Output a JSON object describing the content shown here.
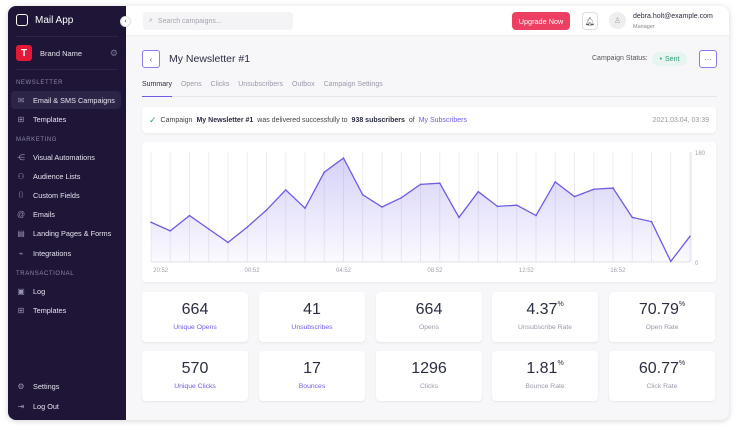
{
  "app": {
    "title": "Mail App"
  },
  "brand": {
    "name": "Brand Name",
    "logo_letter": "T"
  },
  "sidebar": {
    "sections": [
      "NEWSLETTER",
      "MARKETING",
      "TRANSACTIONAL"
    ],
    "items": [
      {
        "label": "Email & SMS Campaigns",
        "icon": "mail-icon"
      },
      {
        "label": "Templates",
        "icon": "grid-icon"
      },
      {
        "label": "Visual Automations",
        "icon": "flow-icon"
      },
      {
        "label": "Audience Lists",
        "icon": "users-icon"
      },
      {
        "label": "Custom Fields",
        "icon": "field-icon"
      },
      {
        "label": "Emails",
        "icon": "at-icon"
      },
      {
        "label": "Landing Pages & Forms",
        "icon": "page-icon"
      },
      {
        "label": "Integrations",
        "icon": "plug-icon"
      },
      {
        "label": "Log",
        "icon": "log-icon"
      },
      {
        "label": "Templates",
        "icon": "grid-icon"
      },
      {
        "label": "Settings",
        "icon": "gear-icon"
      },
      {
        "label": "Log Out",
        "icon": "logout-icon"
      }
    ]
  },
  "header": {
    "search_placeholder": "Search campaigns...",
    "upgrade": "Upgrade Now",
    "user_email": "debra.holt@example.com",
    "user_role": "Manager"
  },
  "page": {
    "title": "My Newsletter #1",
    "status_label": "Campaign Status:",
    "status": "Sent",
    "tabs": [
      "Summary",
      "Opens",
      "Clicks",
      "Unsubscribers",
      "Outbox",
      "Campaign Settings"
    ]
  },
  "alert": {
    "prefix": "Campaign",
    "campaign": "My Newsletter #1",
    "middle": "was delivered successfully to",
    "count": "938 subscribers",
    "of": "of",
    "list": "My Subscribers",
    "date": "2021.03.04, 03:39"
  },
  "chart_data": {
    "type": "area",
    "ylim": [
      0,
      180
    ],
    "ytick_labels": [
      "180",
      "0"
    ],
    "x_labels": [
      "20:52",
      "00:52",
      "04:52",
      "08:52",
      "12:52",
      "16:52"
    ],
    "values": [
      65,
      51,
      76,
      54,
      32,
      57,
      85,
      118,
      88,
      147,
      170,
      110,
      90,
      105,
      127,
      129,
      73,
      115,
      91,
      93,
      76,
      131,
      107,
      119,
      121,
      73,
      66,
      1,
      42
    ],
    "color": "#6c5ce7"
  },
  "stats": [
    {
      "value": "664",
      "label": "Unique Opens",
      "link": true
    },
    {
      "value": "41",
      "label": "Unsubscribes",
      "link": true
    },
    {
      "value": "664",
      "label": "Opens",
      "link": false
    },
    {
      "value": "4.37",
      "unit": "%",
      "label": "Unsubscribe Rate",
      "link": false
    },
    {
      "value": "70.79",
      "unit": "%",
      "label": "Open Rate",
      "link": false
    },
    {
      "value": "570",
      "label": "Unique Clicks",
      "link": true
    },
    {
      "value": "17",
      "label": "Bounces",
      "link": true
    },
    {
      "value": "1296",
      "label": "Clicks",
      "link": false
    },
    {
      "value": "1.81",
      "unit": "%",
      "label": "Bounce Rate",
      "link": false
    },
    {
      "value": "60.77",
      "unit": "%",
      "label": "Click Rate",
      "link": false
    }
  ]
}
